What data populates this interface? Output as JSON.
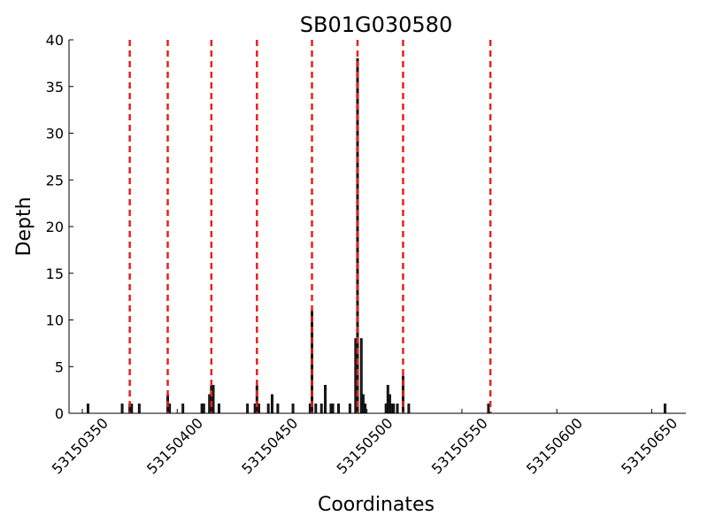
{
  "chart_data": {
    "type": "bar",
    "title": "SB01G030580",
    "x_label": "Coordinates",
    "y_label": "Depth",
    "x": [
      53150353,
      53150371,
      53150375,
      53150376,
      53150380,
      53150395,
      53150396,
      53150403,
      53150413,
      53150414,
      53150417,
      53150418,
      53150419,
      53150422,
      53150437,
      53150441,
      53150442,
      53150443,
      53150448,
      53150450,
      53150453,
      53150461,
      53150470,
      53150471,
      53150473,
      53150476,
      53150478,
      53150481,
      53150482,
      53150485,
      53150491,
      53150494,
      53150495,
      53150497,
      53150498,
      53150499,
      53150510,
      53150511,
      53150512,
      53150513,
      53150514,
      53150516,
      53150519,
      53150522,
      53150564,
      53150657
    ],
    "values": [
      1,
      1,
      1,
      1,
      1,
      2,
      1,
      1,
      1,
      1,
      2,
      3,
      3,
      1,
      1,
      1,
      3,
      1,
      1,
      2,
      1,
      1,
      1,
      11,
      1,
      1,
      3,
      1,
      1,
      1,
      1,
      8,
      38,
      8,
      2,
      1,
      1,
      3,
      2,
      1,
      1,
      1,
      4,
      1,
      1,
      1
    ],
    "color": "#222222",
    "vlines": [
      53150375,
      53150395,
      53150418,
      53150442,
      53150471,
      53150495,
      53150519,
      53150565
    ],
    "vline_color": "#e8201a",
    "xlim": [
      53150343,
      53150668
    ],
    "xticks": [
      53150350,
      53150400,
      53150450,
      53150500,
      53150550,
      53150600,
      53150650
    ],
    "ylim": [
      0,
      40
    ],
    "yticks": [
      0,
      5,
      10,
      15,
      20,
      25,
      30,
      35,
      40
    ]
  }
}
